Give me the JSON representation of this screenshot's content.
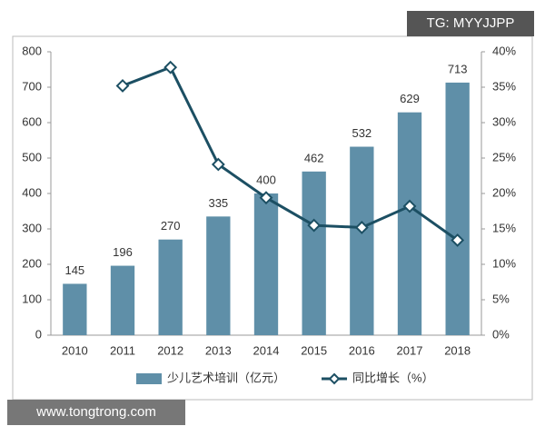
{
  "chart_data": {
    "type": "bar_line",
    "categories": [
      "2010",
      "2011",
      "2012",
      "2013",
      "2014",
      "2015",
      "2016",
      "2017",
      "2018"
    ],
    "series": [
      {
        "name": "少儿艺术培训（亿元）",
        "type": "bar",
        "color": "#5f8fa8",
        "values": [
          145,
          196,
          270,
          335,
          400,
          462,
          532,
          629,
          713
        ]
      },
      {
        "name": "同比增长（%）",
        "type": "line",
        "axis": "y2",
        "color": "#1c4f63",
        "values": [
          null,
          35.2,
          37.8,
          24.1,
          19.4,
          15.5,
          15.2,
          18.2,
          13.4
        ]
      }
    ],
    "ylim": [
      0,
      800
    ],
    "yticks": [
      0,
      100,
      200,
      300,
      400,
      500,
      600,
      700,
      800
    ],
    "y2lim": [
      0,
      40
    ],
    "y2ticks": [
      {
        "value": 0,
        "label": "0%"
      },
      {
        "value": 5,
        "label": "5%"
      },
      {
        "value": 10,
        "label": "10%"
      },
      {
        "value": 15,
        "label": "15%"
      },
      {
        "value": 20,
        "label": "20%"
      },
      {
        "value": 25,
        "label": "25%"
      },
      {
        "value": 30,
        "label": "30%"
      },
      {
        "value": 35,
        "label": "35%"
      },
      {
        "value": 40,
        "label": "40%"
      }
    ],
    "legend": "bottom",
    "watermarks": [
      "TG: MYYJJPP",
      "www.tongtrong.com"
    ]
  }
}
